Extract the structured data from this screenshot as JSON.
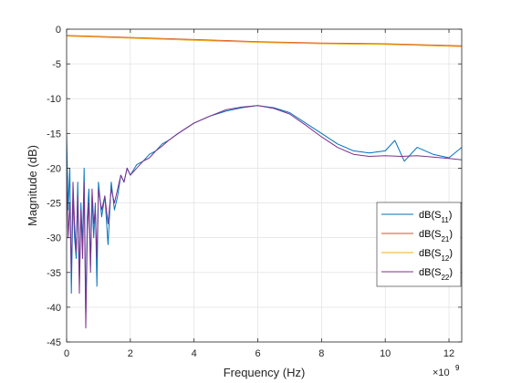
{
  "chart_data": {
    "type": "line",
    "title": "",
    "xlabel": "Frequency (Hz)",
    "ylabel": "Magnitude (dB)",
    "x_exponent_label": "×10",
    "x_exponent_power": "9",
    "xlim": [
      0,
      12.4
    ],
    "ylim": [
      -45,
      0
    ],
    "x_scale": 1000000000,
    "x_ticks": [
      0,
      2,
      4,
      6,
      8,
      10,
      12
    ],
    "x_tick_labels": [
      "0",
      "2",
      "4",
      "6",
      "8",
      "10",
      "12"
    ],
    "y_ticks": [
      0,
      -5,
      -10,
      -15,
      -20,
      -25,
      -30,
      -35,
      -40,
      -45
    ],
    "y_tick_labels": [
      "0",
      "-5",
      "-10",
      "-15",
      "-20",
      "-25",
      "-30",
      "-35",
      "-40",
      "-45"
    ],
    "grid": true,
    "legend_position": "lower-right",
    "series": [
      {
        "name": "dB(S11)",
        "legend_main": "dB(S",
        "legend_sub": "11",
        "legend_close": ")",
        "color": "#0072BD",
        "x": [
          0,
          0.05,
          0.1,
          0.15,
          0.2,
          0.25,
          0.3,
          0.35,
          0.4,
          0.45,
          0.5,
          0.55,
          0.6,
          0.65,
          0.7,
          0.75,
          0.8,
          0.85,
          0.9,
          0.95,
          1.0,
          1.1,
          1.2,
          1.3,
          1.4,
          1.5,
          1.6,
          1.7,
          1.8,
          1.9,
          2.0,
          2.2,
          2.4,
          2.6,
          2.8,
          3.0,
          3.2,
          3.5,
          4.0,
          4.5,
          5.0,
          5.5,
          6.0,
          6.5,
          7.0,
          7.5,
          8.0,
          8.5,
          9.0,
          9.5,
          10.0,
          10.3,
          10.6,
          11.0,
          11.5,
          12.0,
          12.4
        ],
        "y": [
          -15,
          -26,
          -20,
          -38,
          -24,
          -30,
          -33,
          -22,
          -36,
          -25,
          -31,
          -20,
          -41,
          -27,
          -23,
          -34,
          -24,
          -30,
          -25,
          -37,
          -22,
          -27,
          -24,
          -31,
          -22,
          -26,
          -24,
          -21,
          -22,
          -20,
          -21,
          -19.5,
          -19,
          -18,
          -17.5,
          -16.5,
          -16,
          -15,
          -13.5,
          -12.5,
          -11.8,
          -11.3,
          -11,
          -11.3,
          -12,
          -13.5,
          -15,
          -16.5,
          -17.5,
          -17.8,
          -17.5,
          -16,
          -19,
          -17,
          -18,
          -18.5,
          -17
        ]
      },
      {
        "name": "dB(S21)",
        "legend_main": "dB(S",
        "legend_sub": "21",
        "legend_close": ")",
        "color": "#D95319",
        "x": [
          0,
          2,
          4,
          6,
          8,
          10,
          12.4
        ],
        "y": [
          -0.9,
          -1.2,
          -1.5,
          -1.8,
          -2.0,
          -2.1,
          -2.4
        ]
      },
      {
        "name": "dB(S12)",
        "legend_main": "dB(S",
        "legend_sub": "12",
        "legend_close": ")",
        "color": "#EDB120",
        "x": [
          0,
          2,
          4,
          6,
          8,
          10,
          12.4
        ],
        "y": [
          -1.0,
          -1.3,
          -1.6,
          -1.9,
          -2.1,
          -2.2,
          -2.5
        ]
      },
      {
        "name": "dB(S22)",
        "legend_main": "dB(S",
        "legend_sub": "22",
        "legend_close": ")",
        "color": "#7E2F8E",
        "x": [
          0,
          0.05,
          0.1,
          0.15,
          0.2,
          0.25,
          0.3,
          0.35,
          0.4,
          0.45,
          0.5,
          0.55,
          0.6,
          0.65,
          0.7,
          0.75,
          0.8,
          0.85,
          0.9,
          0.95,
          1.0,
          1.1,
          1.2,
          1.3,
          1.4,
          1.5,
          1.6,
          1.7,
          1.8,
          1.9,
          2.0,
          2.2,
          2.4,
          2.6,
          2.8,
          3.0,
          3.2,
          3.5,
          4.0,
          4.5,
          5.0,
          5.5,
          6.0,
          6.5,
          7.0,
          7.5,
          8.0,
          8.5,
          9.0,
          9.5,
          10.0,
          10.5,
          11.0,
          11.5,
          12.0,
          12.4
        ],
        "y": [
          -21,
          -30,
          -25,
          -35,
          -22,
          -28,
          -32,
          -24,
          -38,
          -26,
          -33,
          -22,
          -43,
          -29,
          -25,
          -35,
          -23,
          -28,
          -26,
          -33,
          -23,
          -26,
          -24,
          -28,
          -23,
          -25,
          -23,
          -21,
          -22,
          -20,
          -21,
          -20,
          -19,
          -18.5,
          -17.5,
          -16.8,
          -16,
          -15,
          -13.5,
          -12.5,
          -11.6,
          -11.2,
          -11,
          -11.4,
          -12.2,
          -13.8,
          -15.5,
          -17,
          -18,
          -18.3,
          -18.2,
          -18.3,
          -18.2,
          -18.4,
          -18.6,
          -18.8
        ]
      }
    ]
  }
}
